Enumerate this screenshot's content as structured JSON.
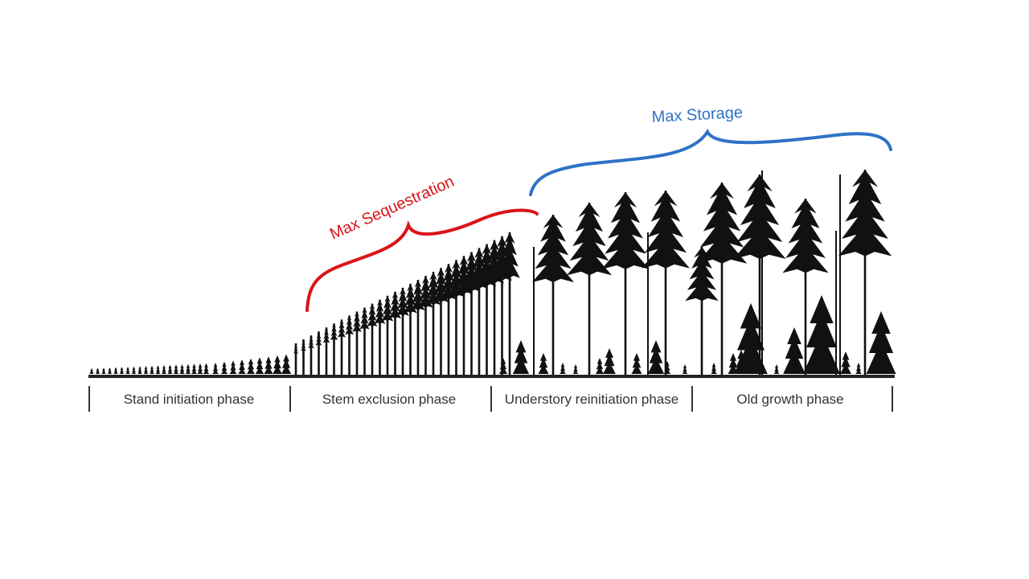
{
  "annotations": {
    "sequestration": {
      "label": "Max Sequestration",
      "color": "#d9141a"
    },
    "storage": {
      "label": "Max Storage",
      "color": "#2d72c7"
    }
  },
  "phases": [
    "Stand initiation phase",
    "Stem exclusion phase",
    "Understory reinitiation phase",
    "Old growth phase"
  ],
  "illustration": {
    "tree_color": "#111111",
    "ground_color": "#222222"
  }
}
